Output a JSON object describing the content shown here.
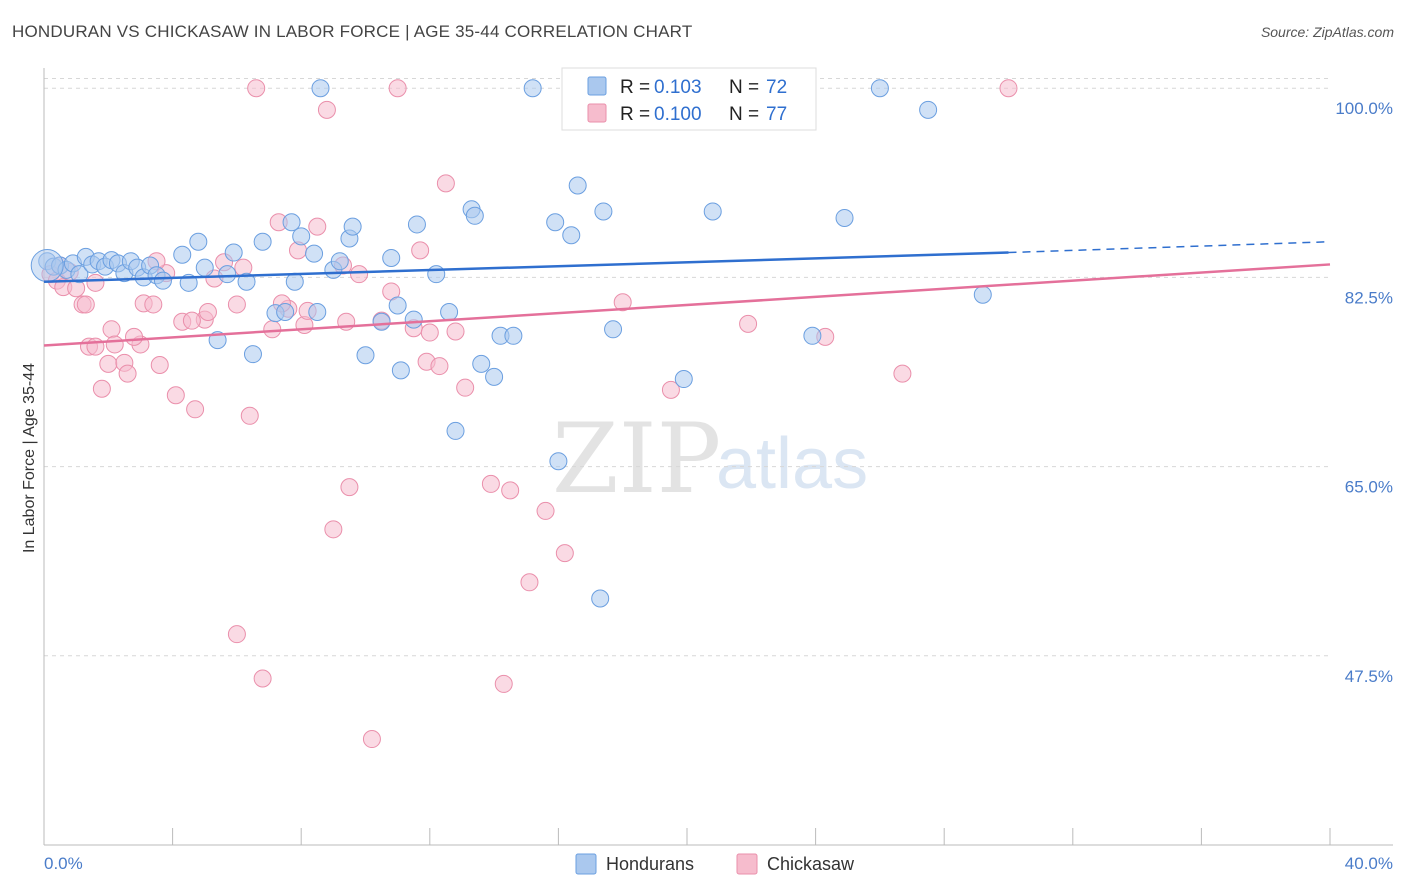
{
  "title": "HONDURAN VS CHICKASAW IN LABOR FORCE | AGE 35-44 CORRELATION CHART",
  "source": "Source: ZipAtlas.com",
  "watermark": {
    "zip": "ZIP",
    "atlas": "atlas"
  },
  "colors": {
    "hondurans_fill": "#aac8ee",
    "hondurans_stroke": "#6b9fe0",
    "hondurans_line": "#2f6fcf",
    "chickasaw_fill": "#f6bccd",
    "chickasaw_stroke": "#ea8fab",
    "chickasaw_line": "#e4709a",
    "axis_text": "#4a7cc9",
    "grid": "#d7d7d7"
  },
  "legend": {
    "rows": [
      {
        "r_label": "R =",
        "r_value": "0.103",
        "n_label": "N =",
        "n_value": "72"
      },
      {
        "r_label": "R =",
        "r_value": "0.100",
        "n_label": "N =",
        "n_value": "77"
      }
    ]
  },
  "chart_data": {
    "type": "scatter",
    "title": "HONDURAN VS CHICKASAW IN LABOR FORCE | AGE 35-44 CORRELATION CHART",
    "xlabel": "",
    "ylabel": "In Labor Force | Age 35-44",
    "xlim": [
      0,
      40
    ],
    "ylim": [
      30,
      101.5
    ],
    "x_tick_labels": [
      "0.0%",
      "40.0%"
    ],
    "y_ticks": [
      47.5,
      65.0,
      82.5,
      100.0
    ],
    "y_tick_labels": [
      "47.5%",
      "65.0%",
      "82.5%",
      "100.0%"
    ],
    "grid": true,
    "legend_position": "top-center",
    "series": [
      {
        "name": "Hondurans",
        "trend": {
          "x0": 0,
          "y0": 82.1,
          "x1": 30,
          "y1": 84.8,
          "dashed_to_x": 40,
          "dashed_to_y": 85.8
        },
        "points": [
          [
            0.1,
            84.0
          ],
          [
            0.3,
            83.5
          ],
          [
            0.5,
            83.6
          ],
          [
            0.7,
            83.2
          ],
          [
            0.9,
            83.8
          ],
          [
            1.1,
            82.8
          ],
          [
            1.3,
            84.4
          ],
          [
            1.5,
            83.7
          ],
          [
            1.7,
            84.0
          ],
          [
            1.9,
            83.5
          ],
          [
            2.1,
            84.1
          ],
          [
            2.3,
            83.8
          ],
          [
            2.5,
            82.9
          ],
          [
            2.7,
            84.0
          ],
          [
            2.9,
            83.4
          ],
          [
            3.1,
            82.5
          ],
          [
            3.3,
            83.6
          ],
          [
            3.5,
            82.7
          ],
          [
            3.7,
            82.2
          ],
          [
            4.3,
            84.6
          ],
          [
            4.5,
            82.0
          ],
          [
            4.8,
            85.8
          ],
          [
            5.0,
            83.4
          ],
          [
            5.4,
            76.7
          ],
          [
            5.7,
            82.8
          ],
          [
            5.9,
            84.8
          ],
          [
            6.3,
            82.1
          ],
          [
            6.5,
            75.4
          ],
          [
            6.8,
            85.8
          ],
          [
            7.2,
            79.2
          ],
          [
            7.5,
            79.3
          ],
          [
            7.7,
            87.6
          ],
          [
            7.8,
            82.1
          ],
          [
            8.0,
            86.3
          ],
          [
            8.4,
            84.7
          ],
          [
            8.5,
            79.3
          ],
          [
            8.6,
            100.0
          ],
          [
            9.0,
            83.2
          ],
          [
            9.2,
            84.0
          ],
          [
            9.5,
            86.1
          ],
          [
            9.6,
            87.2
          ],
          [
            10.0,
            75.3
          ],
          [
            10.5,
            78.4
          ],
          [
            10.8,
            84.3
          ],
          [
            11.0,
            79.9
          ],
          [
            11.1,
            73.9
          ],
          [
            11.5,
            78.6
          ],
          [
            11.6,
            87.4
          ],
          [
            12.2,
            82.8
          ],
          [
            12.6,
            79.3
          ],
          [
            12.8,
            68.3
          ],
          [
            13.3,
            88.8
          ],
          [
            13.4,
            88.2
          ],
          [
            13.6,
            74.5
          ],
          [
            14.0,
            73.3
          ],
          [
            14.2,
            77.1
          ],
          [
            14.6,
            77.1
          ],
          [
            15.2,
            100.0
          ],
          [
            16.0,
            65.5
          ],
          [
            15.9,
            87.6
          ],
          [
            16.4,
            86.4
          ],
          [
            16.6,
            91.0
          ],
          [
            17.4,
            88.6
          ],
          [
            17.3,
            52.8
          ],
          [
            17.7,
            77.7
          ],
          [
            19.9,
            73.1
          ],
          [
            20.8,
            88.6
          ],
          [
            23.9,
            77.1
          ],
          [
            24.9,
            88.0
          ],
          [
            26.0,
            100.0
          ],
          [
            27.5,
            98.0
          ],
          [
            29.2,
            80.9
          ]
        ]
      },
      {
        "name": "Chickasaw",
        "trend": {
          "x0": 0,
          "y0": 76.2,
          "x1": 40,
          "y1": 83.7
        },
        "points": [
          [
            0.2,
            82.8
          ],
          [
            0.4,
            82.2
          ],
          [
            0.6,
            81.6
          ],
          [
            0.8,
            83.0
          ],
          [
            1.0,
            81.5
          ],
          [
            1.2,
            80.0
          ],
          [
            1.4,
            76.1
          ],
          [
            1.6,
            76.1
          ],
          [
            1.8,
            72.2
          ],
          [
            2.0,
            74.5
          ],
          [
            2.1,
            77.7
          ],
          [
            2.2,
            76.3
          ],
          [
            2.5,
            74.6
          ],
          [
            2.6,
            73.6
          ],
          [
            3.0,
            76.3
          ],
          [
            3.1,
            80.1
          ],
          [
            3.4,
            80.0
          ],
          [
            3.6,
            74.4
          ],
          [
            3.8,
            82.9
          ],
          [
            4.1,
            71.6
          ],
          [
            4.3,
            78.4
          ],
          [
            4.7,
            70.3
          ],
          [
            5.0,
            78.6
          ],
          [
            5.1,
            79.3
          ],
          [
            5.3,
            82.4
          ],
          [
            5.6,
            83.9
          ],
          [
            6.0,
            80.0
          ],
          [
            6.2,
            83.4
          ],
          [
            6.4,
            69.7
          ],
          [
            6.6,
            100.0
          ],
          [
            6.8,
            45.4
          ],
          [
            6.0,
            49.5
          ],
          [
            7.1,
            77.7
          ],
          [
            7.3,
            87.6
          ],
          [
            7.6,
            79.6
          ],
          [
            7.9,
            85.0
          ],
          [
            8.1,
            78.1
          ],
          [
            8.2,
            79.4
          ],
          [
            8.5,
            87.2
          ],
          [
            8.8,
            98.0
          ],
          [
            9.0,
            59.2
          ],
          [
            9.3,
            83.6
          ],
          [
            9.5,
            63.1
          ],
          [
            9.8,
            82.8
          ],
          [
            10.2,
            39.8
          ],
          [
            10.5,
            78.5
          ],
          [
            10.8,
            81.2
          ],
          [
            11.0,
            100.0
          ],
          [
            11.5,
            77.8
          ],
          [
            11.7,
            85.0
          ],
          [
            11.9,
            74.7
          ],
          [
            12.0,
            77.4
          ],
          [
            12.3,
            74.3
          ],
          [
            12.5,
            91.2
          ],
          [
            12.8,
            77.5
          ],
          [
            13.1,
            72.3
          ],
          [
            13.9,
            63.4
          ],
          [
            14.3,
            44.9
          ],
          [
            14.5,
            62.8
          ],
          [
            15.1,
            54.3
          ],
          [
            15.6,
            60.9
          ],
          [
            16.2,
            57.0
          ],
          [
            16.6,
            100.0
          ],
          [
            18.0,
            80.2
          ],
          [
            19.5,
            72.1
          ],
          [
            21.9,
            78.2
          ],
          [
            24.3,
            77.0
          ],
          [
            26.7,
            73.6
          ],
          [
            30.0,
            100.0
          ],
          [
            0.5,
            83.6
          ],
          [
            1.3,
            80.0
          ],
          [
            2.8,
            77.0
          ],
          [
            4.6,
            78.5
          ],
          [
            7.4,
            80.1
          ],
          [
            9.4,
            78.4
          ],
          [
            3.5,
            84.0
          ],
          [
            1.6,
            82.0
          ]
        ]
      }
    ]
  },
  "bottom_legend": [
    "Hondurans",
    "Chickasaw"
  ]
}
